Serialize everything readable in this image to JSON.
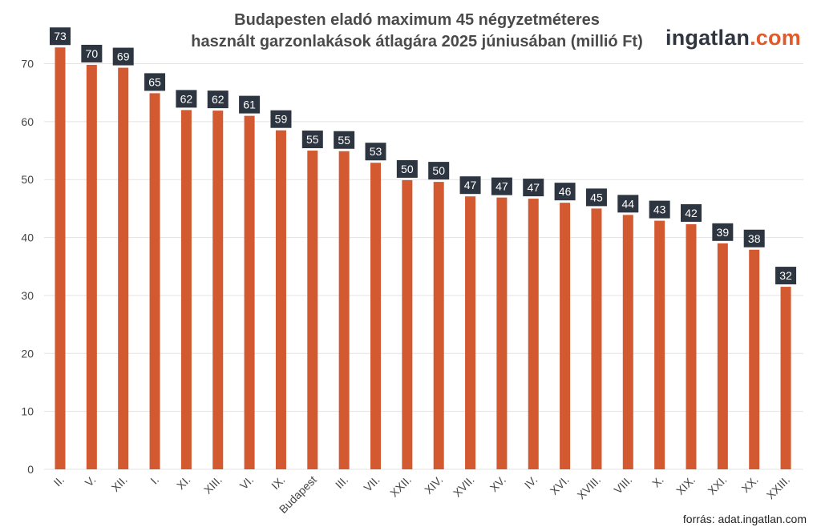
{
  "title_line1": "Budapesten eladó maximum 45 négyzetméteres",
  "title_line2": "használt garzonlakások átlagára 2025 júniusában (millió Ft)",
  "logo": {
    "name": "ingatlan",
    "tld": ".com"
  },
  "source": "forrás: adat.ingatlan.com",
  "colors": {
    "bar": "#d35930",
    "label_bg": "#2d3541",
    "label_text": "#ffffff",
    "grid": "#e3e3e3",
    "axis_text": "#444444",
    "brand_accent": "#e05a2a"
  },
  "chart_data": {
    "type": "bar",
    "categories": [
      "II.",
      "V.",
      "XII.",
      "I.",
      "XI.",
      "XIII.",
      "VI.",
      "IX.",
      "Budapest",
      "III.",
      "VII.",
      "XXII.",
      "XIV.",
      "XVII.",
      "XV.",
      "IV.",
      "XVI.",
      "XVIII.",
      "VIII.",
      "X.",
      "XIX.",
      "XXI.",
      "XX.",
      "XXIII."
    ],
    "values": [
      72.8,
      69.8,
      69.3,
      64.9,
      62.0,
      61.9,
      61.0,
      58.5,
      55.0,
      54.9,
      52.9,
      49.9,
      49.6,
      47.1,
      46.9,
      46.7,
      46.0,
      45.0,
      43.9,
      42.9,
      42.3,
      39.0,
      37.9,
      31.5
    ],
    "data_labels": [
      "73",
      "70",
      "69",
      "65",
      "62",
      "62",
      "61",
      "59",
      "55",
      "55",
      "53",
      "50",
      "50",
      "47",
      "47",
      "47",
      "46",
      "45",
      "44",
      "43",
      "42",
      "39",
      "38",
      "32"
    ],
    "yticks": [
      0,
      10,
      20,
      30,
      40,
      50,
      60,
      70
    ],
    "ylim": [
      0,
      75
    ],
    "grid": true,
    "legend": "none"
  }
}
